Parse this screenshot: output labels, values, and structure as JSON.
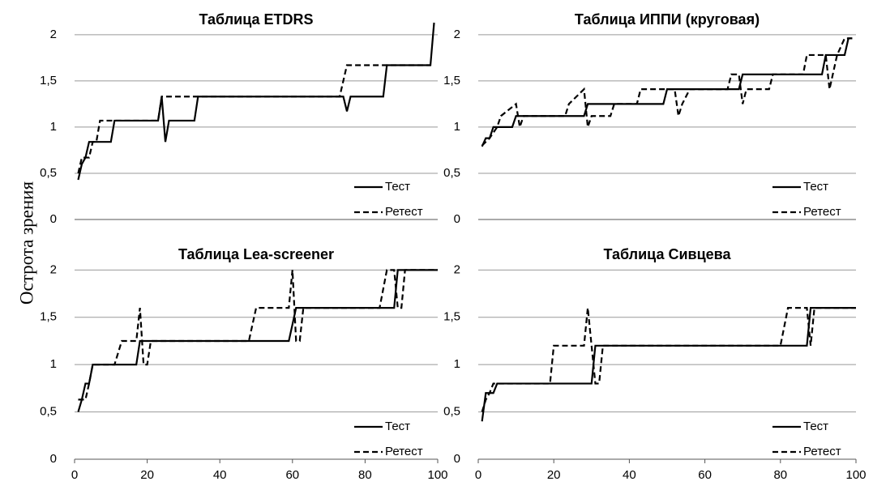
{
  "ylabel": "Острота зрения",
  "chart_data": [
    {
      "type": "line",
      "title": "Таблица ETDRS",
      "legend": "lower right",
      "grid": true,
      "xlim": [
        0,
        100
      ],
      "ylim": [
        0,
        2.2
      ],
      "yticks": [
        0,
        {
          "value": 0.5,
          "label": "0,5"
        },
        1,
        {
          "value": 1.5,
          "label": "1,5"
        },
        2
      ],
      "series": [
        {
          "name": "Тест",
          "color": "#000000",
          "dash": false,
          "x": [
            1,
            2,
            3,
            4,
            10,
            11,
            23,
            24,
            25,
            26,
            33,
            34,
            73,
            74,
            75,
            76,
            85,
            86,
            98,
            99
          ],
          "values": [
            0.43,
            0.6,
            0.67,
            0.84,
            0.84,
            1.07,
            1.07,
            1.33,
            0.84,
            1.07,
            1.07,
            1.33,
            1.33,
            1.33,
            1.17,
            1.33,
            1.33,
            1.67,
            1.67,
            2.13
          ]
        },
        {
          "name": "Ретест",
          "color": "#000000",
          "dash": true,
          "x": [
            1,
            2,
            4,
            5,
            6,
            7,
            23,
            24,
            73,
            75,
            98
          ],
          "values": [
            0.5,
            0.67,
            0.67,
            0.84,
            0.84,
            1.07,
            1.07,
            1.33,
            1.33,
            1.67,
            1.67
          ]
        }
      ]
    },
    {
      "type": "line",
      "title": "Таблица ИППИ (круговая)",
      "legend": "lower right",
      "grid": true,
      "xlim": [
        0,
        100
      ],
      "ylim": [
        0,
        2.2
      ],
      "yticks": [
        0,
        {
          "value": 0.5,
          "label": "0,5"
        },
        1,
        {
          "value": 1.5,
          "label": "1,5"
        },
        2
      ],
      "series": [
        {
          "name": "Тест",
          "color": "#000000",
          "dash": false,
          "x": [
            1,
            2,
            3,
            4,
            9,
            10,
            28,
            29,
            49,
            50,
            69,
            70,
            91,
            92,
            97,
            98,
            99
          ],
          "values": [
            0.79,
            0.88,
            0.88,
            1.0,
            1.0,
            1.12,
            1.12,
            1.25,
            1.25,
            1.41,
            1.41,
            1.57,
            1.57,
            1.78,
            1.78,
            1.96,
            1.96
          ]
        },
        {
          "name": "Ретест",
          "color": "#000000",
          "dash": true,
          "x": [
            1,
            3,
            5,
            6,
            10,
            11,
            12,
            23,
            24,
            28,
            29,
            30,
            35,
            36,
            42,
            43,
            52,
            53,
            54,
            56,
            66,
            67,
            69,
            70,
            71,
            77,
            78,
            86,
            87,
            92,
            93,
            95,
            97,
            99
          ],
          "values": [
            0.8,
            0.88,
            1.0,
            1.12,
            1.25,
            1.0,
            1.12,
            1.12,
            1.25,
            1.41,
            1.0,
            1.12,
            1.12,
            1.25,
            1.25,
            1.41,
            1.41,
            1.12,
            1.25,
            1.41,
            1.41,
            1.57,
            1.57,
            1.25,
            1.41,
            1.41,
            1.57,
            1.57,
            1.78,
            1.78,
            1.41,
            1.78,
            1.96,
            1.96
          ]
        }
      ]
    },
    {
      "type": "line",
      "title": "Таблица Lea-screener",
      "legend": "lower right",
      "grid": true,
      "xlim": [
        0,
        100
      ],
      "ylim": [
        0,
        2.2
      ],
      "xticks": [
        0,
        20,
        40,
        60,
        80,
        100
      ],
      "yticks": [
        0,
        {
          "value": 0.5,
          "label": "0,5"
        },
        1,
        {
          "value": 1.5,
          "label": "1,5"
        },
        2
      ],
      "series": [
        {
          "name": "Тест",
          "color": "#000000",
          "dash": false,
          "x": [
            1,
            2,
            3,
            4,
            5,
            17,
            18,
            59,
            61,
            88,
            89,
            100
          ],
          "values": [
            0.5,
            0.63,
            0.8,
            0.8,
            1.0,
            1.0,
            1.25,
            1.25,
            1.6,
            1.6,
            2.0,
            2.0
          ]
        },
        {
          "name": "Ретест",
          "color": "#000000",
          "dash": true,
          "x": [
            1,
            3,
            4,
            5,
            11,
            13,
            17,
            18,
            19,
            20,
            21,
            48,
            50,
            59,
            60,
            61,
            62,
            63,
            84,
            86,
            88,
            89,
            90,
            91,
            100
          ],
          "values": [
            0.63,
            0.63,
            0.8,
            1.0,
            1.0,
            1.25,
            1.25,
            1.6,
            1.0,
            1.0,
            1.25,
            1.25,
            1.6,
            1.6,
            2.0,
            1.25,
            1.25,
            1.6,
            1.6,
            2.0,
            2.0,
            1.6,
            1.6,
            2.0,
            2.0
          ]
        }
      ]
    },
    {
      "type": "line",
      "title": "Таблица Сивцева",
      "legend": "lower right",
      "grid": true,
      "xlim": [
        0,
        100
      ],
      "ylim": [
        0,
        2.2
      ],
      "xticks": [
        0,
        20,
        40,
        60,
        80,
        100
      ],
      "yticks": [
        0,
        {
          "value": 0.5,
          "label": "0,5"
        },
        1,
        {
          "value": 1.5,
          "label": "1,5"
        },
        2
      ],
      "series": [
        {
          "name": "Тест",
          "color": "#000000",
          "dash": false,
          "x": [
            1,
            2,
            4,
            5,
            30,
            31,
            87,
            88,
            100
          ],
          "values": [
            0.4,
            0.7,
            0.7,
            0.8,
            0.8,
            1.2,
            1.2,
            1.6,
            1.6
          ]
        },
        {
          "name": "Ретест",
          "color": "#000000",
          "dash": true,
          "x": [
            1,
            2,
            3,
            4,
            19,
            20,
            28,
            29,
            30,
            31,
            32,
            33,
            80,
            82,
            87,
            88,
            89,
            100
          ],
          "values": [
            0.5,
            0.63,
            0.7,
            0.8,
            0.8,
            1.2,
            1.2,
            1.6,
            1.2,
            0.8,
            0.8,
            1.2,
            1.2,
            1.6,
            1.6,
            1.2,
            1.6,
            1.6
          ]
        }
      ]
    }
  ]
}
